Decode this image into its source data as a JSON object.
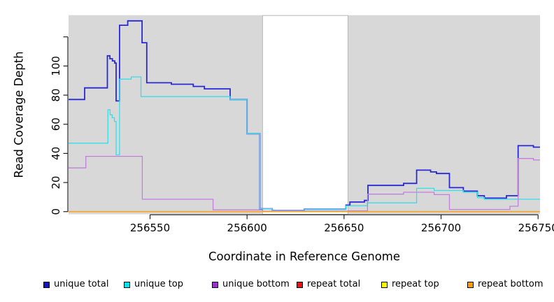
{
  "chart_data": {
    "type": "line",
    "step": true,
    "title": "",
    "xlabel": "Coordinate in Reference Genome",
    "ylabel": "Read Coverage Depth",
    "xlim": [
      256508,
      256751
    ],
    "ylim": [
      -1.8,
      134.9
    ],
    "x_ticks": [
      256550,
      256600,
      256650,
      256700,
      256750
    ],
    "x_tick_labels": [
      "256550",
      "256600",
      "256650",
      "256700",
      "256750"
    ],
    "y_ticks": [
      0,
      20,
      40,
      60,
      80,
      100,
      120
    ],
    "y_tick_labels": [
      "0",
      "20",
      "40",
      "60",
      "80",
      "100",
      ""
    ],
    "grid": false,
    "legend_position": "bottom",
    "plot_bg": "#d8d8d8",
    "masked_region": {
      "from": 256608,
      "to": 256652,
      "color": "#ffffff"
    },
    "series": [
      {
        "name": "unique total",
        "color": "#2828d4",
        "swatch": "#1212cf",
        "width": 1.8,
        "points": [
          [
            256508,
            77
          ],
          [
            256516.3,
            85
          ],
          [
            256528,
            107
          ],
          [
            256529.3,
            105
          ],
          [
            256530.6,
            103.5
          ],
          [
            256531.8,
            102
          ],
          [
            256532.5,
            76
          ],
          [
            256534.3,
            128
          ],
          [
            256538.5,
            131
          ],
          [
            256545.9,
            116
          ],
          [
            256548.3,
            88.5
          ],
          [
            256561,
            87.5
          ],
          [
            256572.3,
            86
          ],
          [
            256578,
            84.3
          ],
          [
            256591.3,
            77
          ],
          [
            256600,
            53.5
          ],
          [
            256606.6,
            2
          ],
          [
            256613,
            0.7
          ],
          [
            256629.5,
            1.6
          ],
          [
            256651,
            4.5
          ],
          [
            256653,
            6.6
          ],
          [
            256660.5,
            7.7
          ],
          [
            256662.3,
            18
          ],
          [
            256680.7,
            19.4
          ],
          [
            256687.4,
            28.5
          ],
          [
            256694.6,
            27.3
          ],
          [
            256697.6,
            26.2
          ],
          [
            256704.3,
            16.5
          ],
          [
            256711.5,
            14.1
          ],
          [
            256718.7,
            10.9
          ],
          [
            256722.3,
            9.3
          ],
          [
            256733.7,
            10.9
          ],
          [
            256739.7,
            45.3
          ],
          [
            256747.6,
            44.3
          ],
          [
            256751,
            44.3
          ]
        ]
      },
      {
        "name": "unique top",
        "color": "#35dfe9",
        "swatch": "#00e5ee",
        "width": 1.3,
        "points": [
          [
            256508,
            47
          ],
          [
            256528.3,
            70
          ],
          [
            256529.4,
            66.5
          ],
          [
            256530.5,
            64.5
          ],
          [
            256531.6,
            62
          ],
          [
            256532.5,
            39
          ],
          [
            256534.3,
            91
          ],
          [
            256540.3,
            92.5
          ],
          [
            256545.3,
            79
          ],
          [
            256591.3,
            77
          ],
          [
            256600,
            53.5
          ],
          [
            256606.6,
            2
          ],
          [
            256613,
            0.6
          ],
          [
            256629.5,
            1.4
          ],
          [
            256651,
            4
          ],
          [
            256662,
            6
          ],
          [
            256687.4,
            16
          ],
          [
            256696.4,
            14.5
          ],
          [
            256711.5,
            13.3
          ],
          [
            256718.7,
            9.6
          ],
          [
            256722.3,
            8.5
          ],
          [
            256751,
            8.5
          ]
        ]
      },
      {
        "name": "unique bottom",
        "color": "#c47fdb",
        "swatch": "#9932cc",
        "width": 1.3,
        "points": [
          [
            256508,
            30
          ],
          [
            256516.9,
            38
          ],
          [
            256546,
            8.5
          ],
          [
            256582.5,
            1.2
          ],
          [
            256608,
            0.4
          ],
          [
            256652,
            0.5
          ],
          [
            256662.1,
            12
          ],
          [
            256680.7,
            13.3
          ],
          [
            256696.4,
            11.7
          ],
          [
            256704.3,
            1.5
          ],
          [
            256735.5,
            3.7
          ],
          [
            256739.7,
            36.5
          ],
          [
            256747.6,
            35.5
          ],
          [
            256751,
            35.5
          ]
        ]
      },
      {
        "name": "repeat total",
        "color": "#e02020",
        "swatch": "#ee1111",
        "width": 1.3,
        "points": [
          [
            256508,
            0
          ],
          [
            256751,
            0
          ]
        ]
      },
      {
        "name": "repeat top",
        "color": "#f8f820",
        "swatch": "#ffff00",
        "width": 1.3,
        "points": [
          [
            256508,
            0
          ],
          [
            256751,
            0
          ]
        ]
      },
      {
        "name": "repeat bottom",
        "color": "#ffa321",
        "swatch": "#ff9d00",
        "width": 1.6,
        "points": [
          [
            256508,
            0
          ],
          [
            256751,
            0
          ]
        ]
      }
    ]
  }
}
